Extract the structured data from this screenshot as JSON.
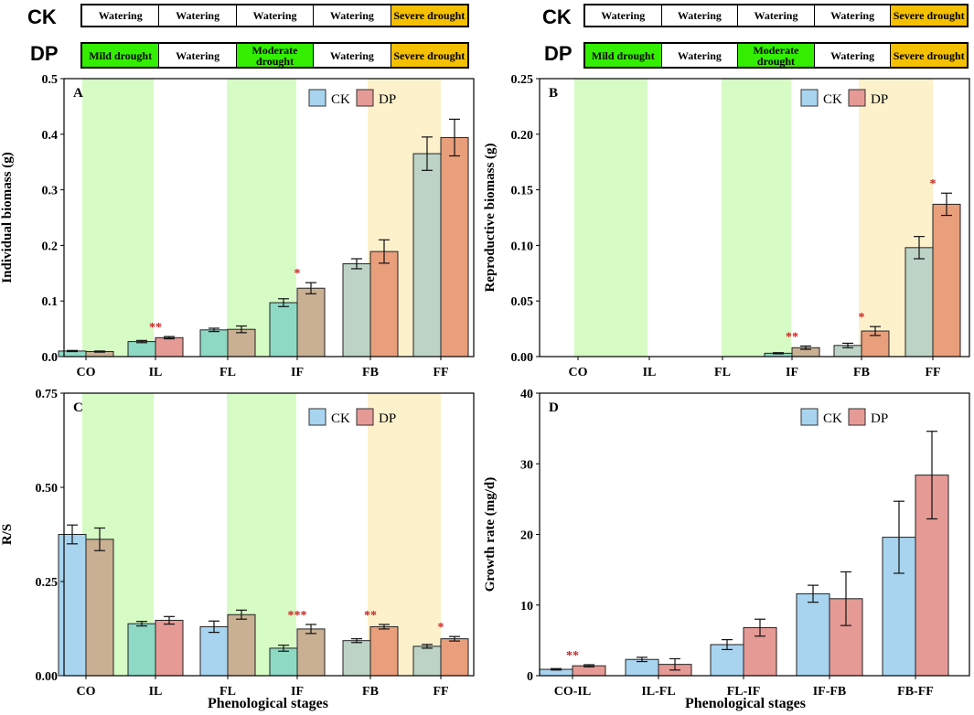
{
  "schedule": [
    {
      "name": "CK",
      "cells": [
        {
          "label": "Watering",
          "color": "#ffffff"
        },
        {
          "label": "Watering",
          "color": "#ffffff"
        },
        {
          "label": "Watering",
          "color": "#ffffff"
        },
        {
          "label": "Watering",
          "color": "#ffffff"
        },
        {
          "label": "Severe drought",
          "color": "#f5c000"
        }
      ]
    },
    {
      "name": "DP",
      "cells": [
        {
          "label": "Mild drought",
          "color": "#33ee00"
        },
        {
          "label": "Watering",
          "color": "#ffffff"
        },
        {
          "label": "Moderate drought",
          "color": "#33ee00"
        },
        {
          "label": "Watering",
          "color": "#ffffff"
        },
        {
          "label": "Severe drought",
          "color": "#f5c000"
        }
      ]
    }
  ],
  "colors": {
    "ck": "#a8d4ef",
    "dp": "#e59a96",
    "mild_band": "#d6fbc4",
    "severe_band": "#fdf1cc",
    "ck_green": "#8dd9c4",
    "dp_green": "#c9b093",
    "ck_yellow": "#bcd3c6",
    "dp_yellow": "#e99e7c",
    "sig": "#d02020"
  },
  "chart_data": [
    {
      "panel": "A",
      "type": "bar",
      "ylabel": "Individual biomass (g)",
      "xlabel": "",
      "categories": [
        "CO",
        "IL",
        "FL",
        "IF",
        "FB",
        "FF"
      ],
      "ylim": [
        0,
        0.5
      ],
      "yticks": [
        "0.0",
        "0.1",
        "0.2",
        "0.3",
        "0.4",
        "0.5"
      ],
      "ytick_values": [
        0,
        0.1,
        0.2,
        0.3,
        0.4,
        0.5
      ],
      "series": [
        {
          "name": "CK",
          "values": [
            0.01,
            0.027,
            0.048,
            0.097,
            0.167,
            0.365
          ],
          "errors": [
            0.001,
            0.002,
            0.003,
            0.007,
            0.009,
            0.03
          ]
        },
        {
          "name": "DP",
          "values": [
            0.009,
            0.034,
            0.049,
            0.123,
            0.189,
            0.394
          ],
          "errors": [
            0.001,
            0.002,
            0.006,
            0.01,
            0.021,
            0.033
          ]
        }
      ],
      "significance": [
        "",
        "**",
        "",
        "*",
        "",
        ""
      ],
      "legend": [
        "CK",
        "DP"
      ]
    },
    {
      "panel": "B",
      "type": "bar",
      "ylabel": "Reproductive biomass (g)",
      "xlabel": "",
      "categories": [
        "CO",
        "IL",
        "FL",
        "IF",
        "FB",
        "FF"
      ],
      "ylim": [
        0,
        0.25
      ],
      "yticks": [
        "0.00",
        "0.05",
        "0.10",
        "0.15",
        "0.20",
        "0.25"
      ],
      "ytick_values": [
        0,
        0.05,
        0.1,
        0.15,
        0.2,
        0.25
      ],
      "series": [
        {
          "name": "CK",
          "values": [
            0,
            0,
            0,
            0.003,
            0.01,
            0.098
          ],
          "errors": [
            0,
            0,
            0,
            0.0005,
            0.002,
            0.01
          ]
        },
        {
          "name": "DP",
          "values": [
            0,
            0,
            0,
            0.008,
            0.023,
            0.137
          ],
          "errors": [
            0,
            0,
            0,
            0.0015,
            0.004,
            0.01
          ]
        }
      ],
      "significance": [
        "",
        "",
        "",
        "**",
        "*",
        "*"
      ],
      "legend": [
        "CK",
        "DP"
      ]
    },
    {
      "panel": "C",
      "type": "bar",
      "ylabel": "R/S",
      "xlabel": "Phenological stages",
      "categories": [
        "CO",
        "IL",
        "FL",
        "IF",
        "FB",
        "FF"
      ],
      "ylim": [
        0,
        0.75
      ],
      "yticks": [
        "0.00",
        "0.25",
        "0.50",
        "0.75"
      ],
      "ytick_values": [
        0,
        0.25,
        0.5,
        0.75
      ],
      "series": [
        {
          "name": "CK",
          "values": [
            0.375,
            0.138,
            0.13,
            0.073,
            0.093,
            0.078
          ],
          "errors": [
            0.025,
            0.006,
            0.015,
            0.008,
            0.005,
            0.005
          ]
        },
        {
          "name": "DP",
          "values": [
            0.362,
            0.147,
            0.162,
            0.124,
            0.13,
            0.098
          ],
          "errors": [
            0.03,
            0.01,
            0.012,
            0.012,
            0.006,
            0.006
          ]
        }
      ],
      "significance": [
        "",
        "",
        "",
        "***",
        "**",
        "*"
      ],
      "legend": [
        "CK",
        "DP"
      ]
    },
    {
      "panel": "D",
      "type": "bar",
      "ylabel": "Growth rate (mg/d)",
      "xlabel": "Phenological stages",
      "categories": [
        "CO-IL",
        "IL-FL",
        "FL-IF",
        "IF-FB",
        "FB-FF"
      ],
      "ylim": [
        0,
        40
      ],
      "yticks": [
        "0",
        "10",
        "20",
        "30",
        "40"
      ],
      "ytick_values": [
        0,
        10,
        20,
        30,
        40
      ],
      "series": [
        {
          "name": "CK",
          "values": [
            0.9,
            2.3,
            4.4,
            11.6,
            19.6
          ],
          "errors": [
            0.1,
            0.3,
            0.7,
            1.2,
            5.1
          ]
        },
        {
          "name": "DP",
          "values": [
            1.4,
            1.6,
            6.8,
            10.9,
            28.4
          ],
          "errors": [
            0.15,
            0.8,
            1.2,
            3.8,
            6.2
          ]
        }
      ],
      "significance": [
        "**",
        "",
        "",
        "",
        ""
      ],
      "legend": [
        "CK",
        "DP"
      ]
    }
  ]
}
